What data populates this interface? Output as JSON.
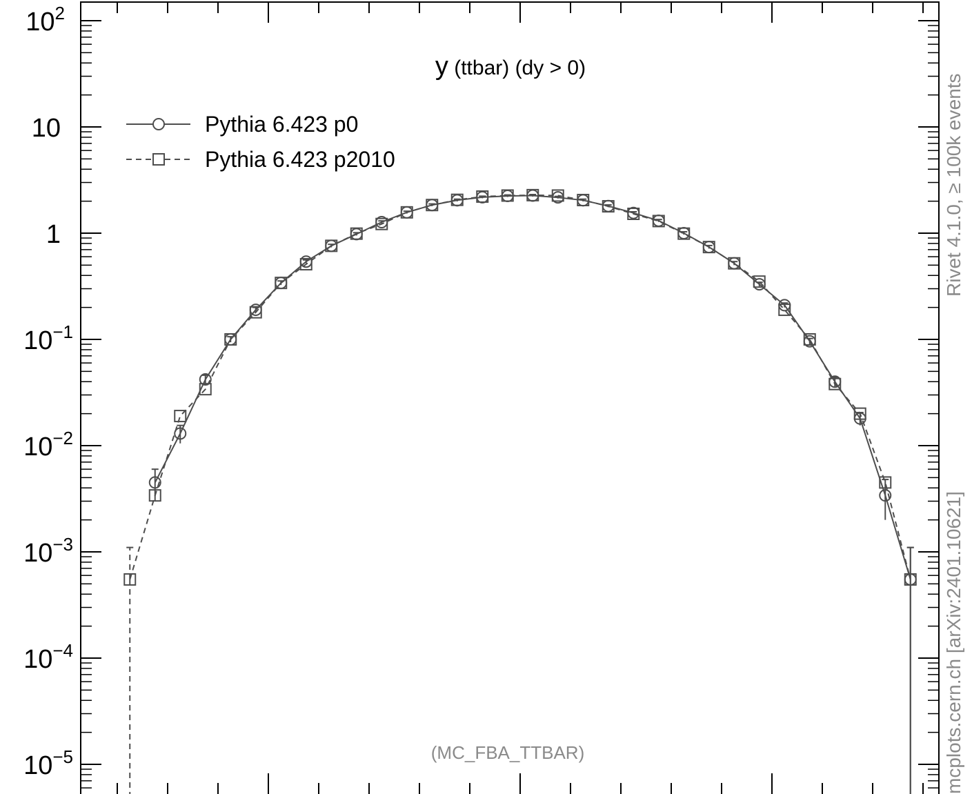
{
  "chart_data": {
    "type": "line",
    "title": "y (ttbar) (dy > 0)",
    "title_main": "y",
    "title_rest": " (ttbar) (dy > 0)",
    "annotation": "(MC_FBA_TTBAR)",
    "yscale": "log",
    "ylim": [
      1e-05,
      100
    ],
    "xlim": [
      -3.3,
      3.3
    ],
    "y_tick_labels": [
      {
        "value": 100,
        "base": "10",
        "exp": "2"
      },
      {
        "value": 10,
        "base": "10",
        "exp": ""
      },
      {
        "value": 1,
        "base": "1",
        "exp": ""
      },
      {
        "value": 0.1,
        "base": "10",
        "exp": "−1"
      },
      {
        "value": 0.01,
        "base": "10",
        "exp": "−2"
      },
      {
        "value": 0.001,
        "base": "10",
        "exp": "−3"
      },
      {
        "value": 0.0001,
        "base": "10",
        "exp": "−4"
      },
      {
        "value": 1e-05,
        "base": "10",
        "exp": "−5"
      }
    ],
    "x_major_ticks": [
      -2,
      0,
      2
    ],
    "x": [
      -3.1,
      -2.9,
      -2.7,
      -2.5,
      -2.3,
      -2.1,
      -1.9,
      -1.7,
      -1.5,
      -1.3,
      -1.1,
      -0.9,
      -0.7,
      -0.5,
      -0.3,
      -0.1,
      0.1,
      0.3,
      0.5,
      0.7,
      0.9,
      1.1,
      1.3,
      1.5,
      1.7,
      1.9,
      2.1,
      2.3,
      2.5,
      2.7,
      2.9,
      3.1
    ],
    "series": [
      {
        "name": "Pythia 6.423 p0",
        "marker": "circle",
        "linestyle": "solid",
        "color": "#4d4d4d",
        "values": [
          null,
          0.0045,
          0.013,
          0.042,
          0.1,
          0.19,
          0.34,
          0.54,
          0.76,
          0.98,
          1.27,
          1.57,
          1.84,
          2.04,
          2.18,
          2.24,
          2.26,
          2.17,
          2.04,
          1.8,
          1.55,
          1.31,
          1.0,
          0.74,
          0.52,
          0.33,
          0.21,
          0.096,
          0.04,
          0.018,
          0.0034,
          0.00055
        ],
        "errors": [
          null,
          0.0015,
          0.0025,
          0.004,
          0.006,
          0.01,
          0.015,
          0.02,
          0.025,
          0.03,
          0.035,
          0.04,
          0.045,
          0.05,
          0.05,
          0.05,
          0.05,
          0.05,
          0.05,
          0.045,
          0.04,
          0.035,
          0.03,
          0.025,
          0.02,
          0.015,
          0.01,
          0.006,
          0.004,
          0.0025,
          0.0014,
          0.00055
        ]
      },
      {
        "name": "Pythia 6.423 p2010",
        "marker": "square",
        "linestyle": "dashed",
        "color": "#4d4d4d",
        "values": [
          0.00055,
          0.0034,
          0.019,
          0.034,
          0.1,
          0.18,
          0.34,
          0.51,
          0.76,
          0.99,
          1.22,
          1.57,
          1.84,
          2.06,
          2.21,
          2.26,
          2.28,
          2.26,
          2.05,
          1.79,
          1.52,
          1.3,
          0.99,
          0.74,
          0.52,
          0.35,
          0.19,
          0.1,
          0.038,
          0.02,
          0.0045,
          0.00055
        ]
      }
    ],
    "side_labels": {
      "right_top": "Rivet 4.1.0, ≥ 100k events",
      "right_bottom": "mcplots.cern.ch [arXiv:2401.10621]"
    }
  }
}
